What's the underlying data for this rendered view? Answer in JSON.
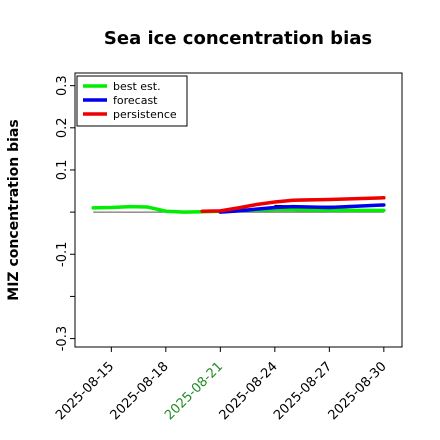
{
  "chart_data": {
    "type": "line",
    "title": "Sea ice concentration bias",
    "xlabel": "",
    "ylabel": "MIZ concentration bias",
    "ylim": [
      -0.32,
      0.33
    ],
    "xlim": [
      "2025-08-13",
      "2025-08-31"
    ],
    "x_ticks": [
      {
        "date": "2025-08-15",
        "label": "2025-08-15",
        "color": "#000000"
      },
      {
        "date": "2025-08-18",
        "label": "2025-08-18",
        "color": "#000000"
      },
      {
        "date": "2025-08-21",
        "label": "2025-08-21",
        "color": "#228B22"
      },
      {
        "date": "2025-08-24",
        "label": "2025-08-24",
        "color": "#000000"
      },
      {
        "date": "2025-08-27",
        "label": "2025-08-27",
        "color": "#000000"
      },
      {
        "date": "2025-08-30",
        "label": "2025-08-30",
        "color": "#000000"
      }
    ],
    "y_ticks": [
      {
        "value": 0.3,
        "label": "0.3"
      },
      {
        "value": 0.2,
        "label": "0.2"
      },
      {
        "value": 0.1,
        "label": "0.1"
      },
      {
        "value": 0.0,
        "label": ""
      },
      {
        "value": -0.1,
        "label": "-0.1"
      },
      {
        "value": -0.2,
        "label": ""
      },
      {
        "value": -0.3,
        "label": "-0.3"
      }
    ],
    "zero_line": true,
    "grid": false,
    "legend_position": "top-left",
    "series": [
      {
        "name": "best est.",
        "color": "#00ee00",
        "points": [
          {
            "x": "2025-08-14",
            "y": 0.01
          },
          {
            "x": "2025-08-15",
            "y": 0.011
          },
          {
            "x": "2025-08-16",
            "y": 0.013
          },
          {
            "x": "2025-08-17",
            "y": 0.012
          },
          {
            "x": "2025-08-18",
            "y": 0.002
          },
          {
            "x": "2025-08-19",
            "y": 0.0
          },
          {
            "x": "2025-08-20",
            "y": 0.001
          },
          {
            "x": "2025-08-21",
            "y": 0.002
          },
          {
            "x": "2025-08-22",
            "y": 0.004
          },
          {
            "x": "2025-08-23",
            "y": 0.005
          },
          {
            "x": "2025-08-24",
            "y": 0.006
          },
          {
            "x": "2025-08-25",
            "y": 0.006
          },
          {
            "x": "2025-08-27",
            "y": 0.004
          },
          {
            "x": "2025-08-30",
            "y": 0.004
          }
        ]
      },
      {
        "name": "forecast",
        "color": "#0000ee",
        "points": [
          {
            "x": "2025-08-21",
            "y": 0.0
          },
          {
            "x": "2025-08-22",
            "y": 0.003
          },
          {
            "x": "2025-08-23",
            "y": 0.007
          },
          {
            "x": "2025-08-24",
            "y": 0.011
          },
          {
            "x": "2025-08-25",
            "y": 0.013
          },
          {
            "x": "2025-08-27",
            "y": 0.011
          },
          {
            "x": "2025-08-30",
            "y": 0.017
          }
        ]
      },
      {
        "name": "persistence",
        "color": "#ee0000",
        "points": [
          {
            "x": "2025-08-20",
            "y": 0.002
          },
          {
            "x": "2025-08-21",
            "y": 0.003
          },
          {
            "x": "2025-08-22",
            "y": 0.01
          },
          {
            "x": "2025-08-23",
            "y": 0.018
          },
          {
            "x": "2025-08-24",
            "y": 0.024
          },
          {
            "x": "2025-08-25",
            "y": 0.028
          },
          {
            "x": "2025-08-27",
            "y": 0.03
          },
          {
            "x": "2025-08-30",
            "y": 0.034
          }
        ]
      },
      {
        "name": "",
        "color": "#00cc00",
        "points": [
          {
            "x": "2025-08-25",
            "y": 0.007
          },
          {
            "x": "2025-08-27",
            "y": 0.006
          },
          {
            "x": "2025-08-30",
            "y": 0.006
          }
        ]
      },
      {
        "name": "",
        "color": "#000000",
        "points": [
          {
            "x": "2025-08-24",
            "y": 0.016
          },
          {
            "x": "2025-08-26",
            "y": 0.014
          },
          {
            "x": "2025-08-30",
            "y": 0.015
          }
        ]
      },
      {
        "name": "",
        "color": "#aa0000",
        "points": [
          {
            "x": "2025-08-25",
            "y": 0.031
          },
          {
            "x": "2025-08-27",
            "y": 0.032
          },
          {
            "x": "2025-08-30",
            "y": 0.034
          }
        ]
      }
    ]
  }
}
